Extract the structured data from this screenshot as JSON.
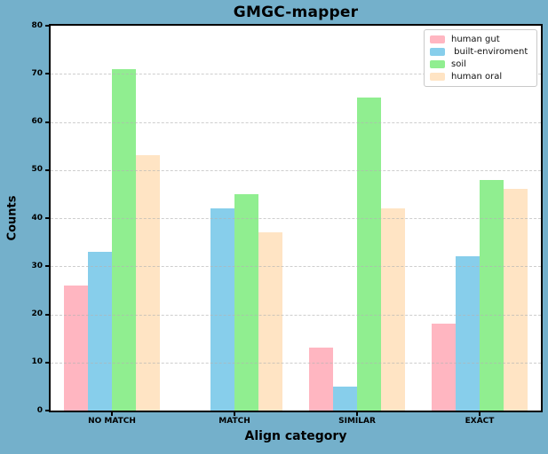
{
  "figure": {
    "background_color": "#74b0cb",
    "plot_background": "#ffffff",
    "grid_color": "#b4b4b4"
  },
  "chart_data": {
    "type": "bar",
    "title": "GMGC-mapper",
    "xlabel": "Align category",
    "ylabel": "Counts",
    "categories": [
      "NO MATCH",
      "MATCH",
      "SIMILAR",
      "EXACT"
    ],
    "series": [
      {
        "name": "human gut",
        "legend_label": "human gut",
        "color": "#FFB6C1",
        "values": [
          26,
          0,
          13,
          18
        ]
      },
      {
        "name": "built-enviroment",
        "legend_label": " built-enviroment",
        "color": "#87CEEB",
        "values": [
          33,
          42,
          5,
          32
        ]
      },
      {
        "name": "soil",
        "legend_label": "soil",
        "color": "#90EE90",
        "values": [
          71,
          45,
          65,
          48
        ]
      },
      {
        "name": "human oral",
        "legend_label": "human oral",
        "color": "#FFE4C4",
        "values": [
          53,
          37,
          42,
          46
        ]
      }
    ],
    "ylim": [
      0,
      80
    ],
    "yticks": [
      0,
      10,
      20,
      30,
      40,
      50,
      60,
      70,
      80
    ],
    "grid": true,
    "grid_style": "dashed-horizontal",
    "legend_position": "upper right"
  }
}
